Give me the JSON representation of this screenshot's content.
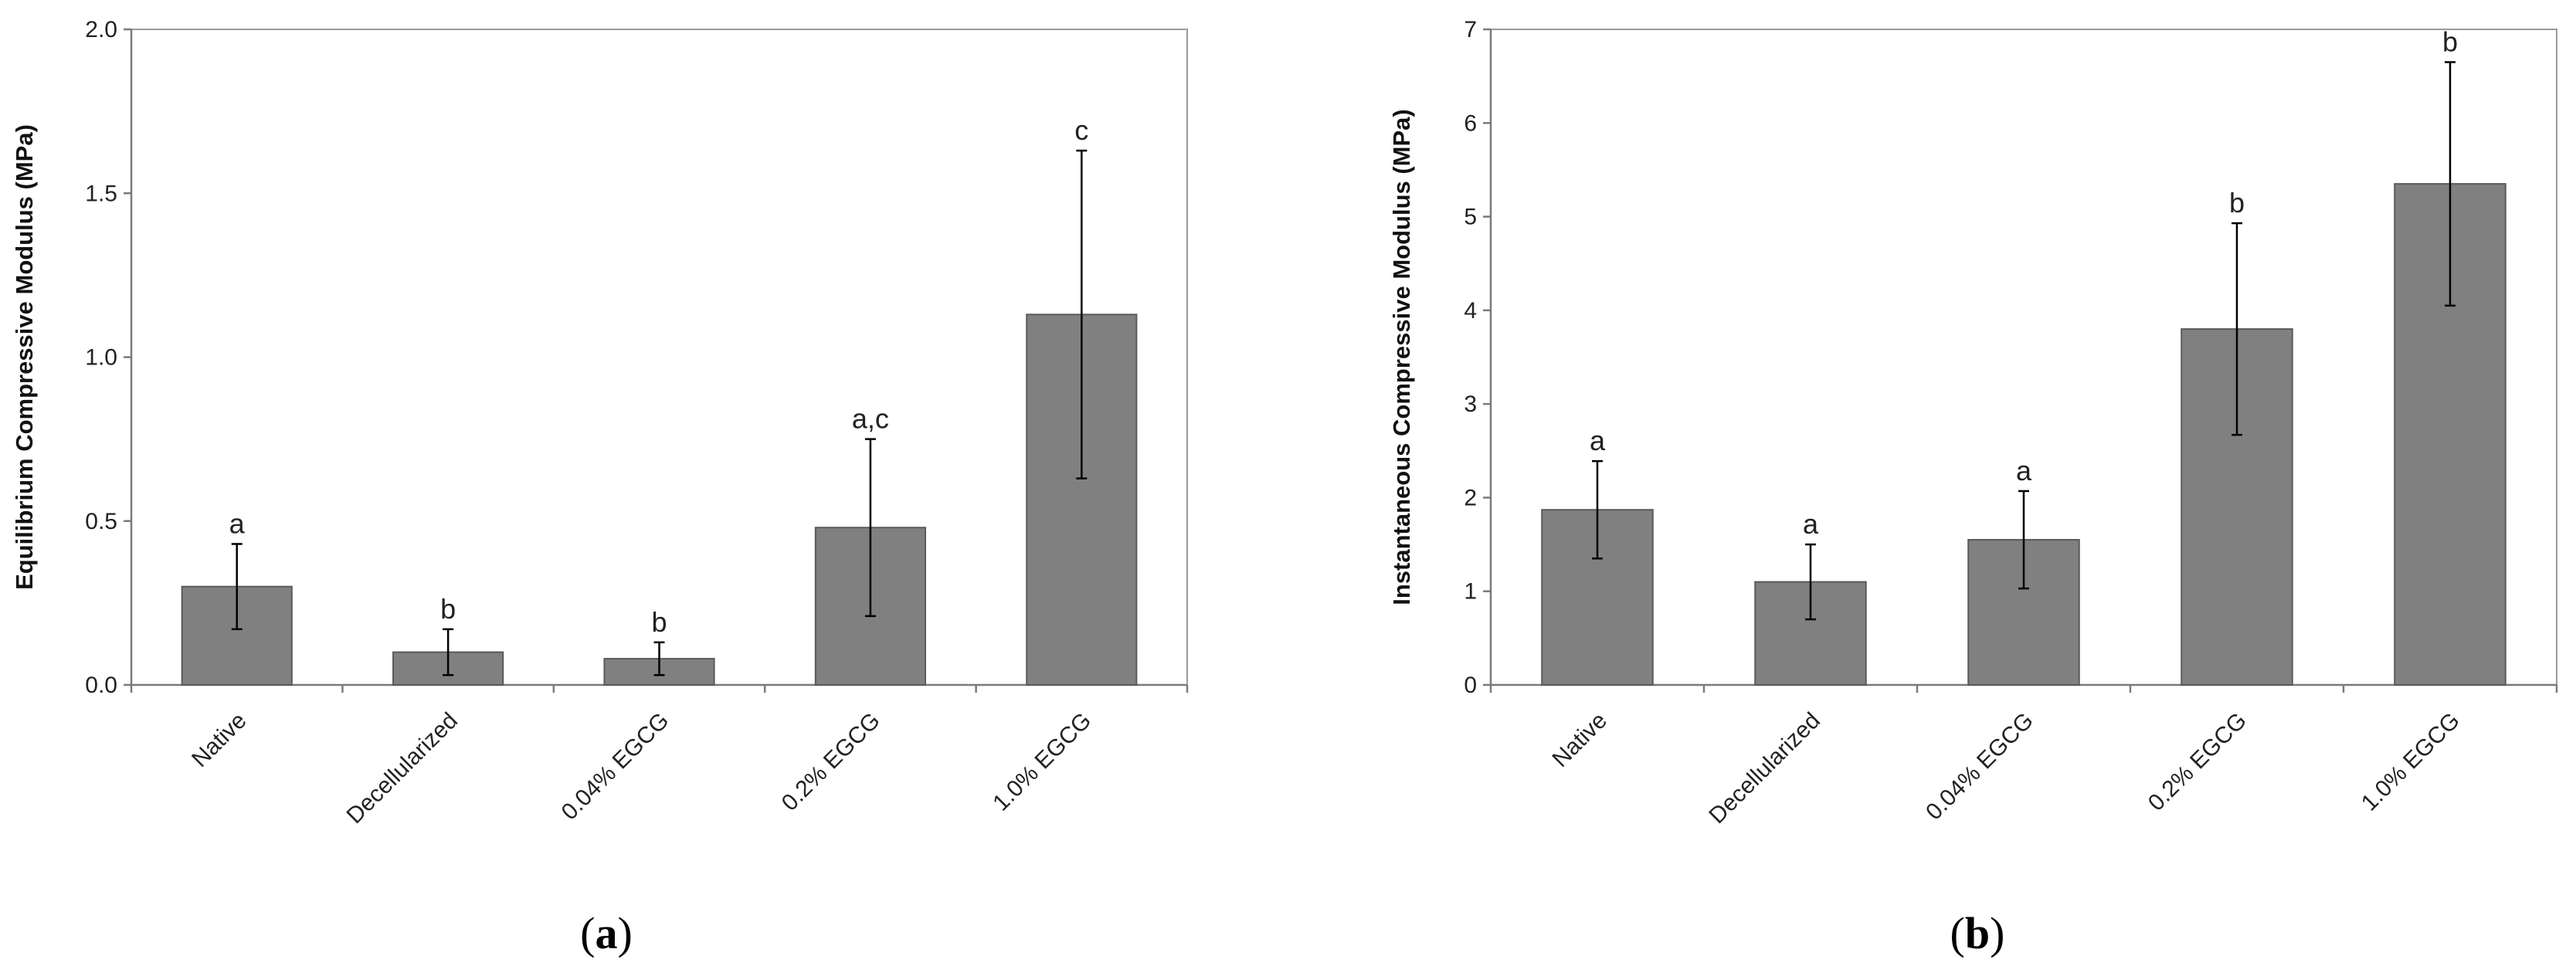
{
  "chart_data": [
    {
      "type": "bar",
      "panel_label": "a",
      "categories": [
        "Native",
        "Decellularized",
        "0.04% EGCG",
        "0.2% EGCG",
        "1.0% EGCG"
      ],
      "values": [
        0.3,
        0.1,
        0.08,
        0.48,
        1.13
      ],
      "errors": [
        0.13,
        0.07,
        0.05,
        0.27,
        0.5
      ],
      "significance": [
        "a",
        "b",
        "b",
        "a,c",
        "c"
      ],
      "title": "",
      "xlabel": "",
      "ylabel": "Equilibrium Compressive Modulus (MPa)",
      "ylim": [
        0,
        2.0
      ],
      "yticks": [
        0.0,
        0.5,
        1.0,
        1.5,
        2.0
      ],
      "ytick_labels": [
        "0.0",
        "0.5",
        "1.0",
        "1.5",
        "2.0"
      ],
      "grid": false,
      "bar_color": "#808080"
    },
    {
      "type": "bar",
      "panel_label": "b",
      "categories": [
        "Native",
        "Decellularized",
        "0.04% EGCG",
        "0.2% EGCG",
        "1.0% EGCG"
      ],
      "values": [
        1.87,
        1.1,
        1.55,
        3.8,
        5.35
      ],
      "errors": [
        0.52,
        0.4,
        0.52,
        1.13,
        1.3
      ],
      "significance": [
        "a",
        "a",
        "a",
        "b",
        "b"
      ],
      "title": "",
      "xlabel": "",
      "ylabel": "Instantaneous Compressive Modulus (MPa)",
      "ylim": [
        0,
        7
      ],
      "yticks": [
        0,
        1,
        2,
        3,
        4,
        5,
        6,
        7
      ],
      "ytick_labels": [
        "0",
        "1",
        "2",
        "3",
        "4",
        "5",
        "6",
        "7"
      ],
      "grid": false,
      "bar_color": "#808080"
    }
  ]
}
